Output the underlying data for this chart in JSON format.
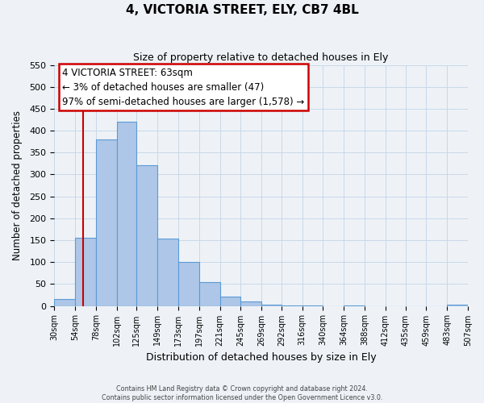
{
  "title": "4, VICTORIA STREET, ELY, CB7 4BL",
  "subtitle": "Size of property relative to detached houses in Ely",
  "xlabel": "Distribution of detached houses by size in Ely",
  "ylabel": "Number of detached properties",
  "bin_labels": [
    "30sqm",
    "54sqm",
    "78sqm",
    "102sqm",
    "125sqm",
    "149sqm",
    "173sqm",
    "197sqm",
    "221sqm",
    "245sqm",
    "269sqm",
    "292sqm",
    "316sqm",
    "340sqm",
    "364sqm",
    "388sqm",
    "412sqm",
    "435sqm",
    "459sqm",
    "483sqm",
    "507sqm"
  ],
  "bar_heights": [
    15,
    155,
    380,
    420,
    322,
    153,
    100,
    55,
    22,
    10,
    2,
    1,
    1,
    0,
    1,
    0,
    0,
    0,
    0,
    3,
    2
  ],
  "bar_color": "#aec6e8",
  "bar_edge_color": "#5b9bd5",
  "property_line_x": 63,
  "bin_edges": [
    30,
    54,
    78,
    102,
    125,
    149,
    173,
    197,
    221,
    245,
    269,
    292,
    316,
    340,
    364,
    388,
    412,
    435,
    459,
    483,
    507
  ],
  "ylim": [
    0,
    550
  ],
  "yticks": [
    0,
    50,
    100,
    150,
    200,
    250,
    300,
    350,
    400,
    450,
    500,
    550
  ],
  "annotation_title": "4 VICTORIA STREET: 63sqm",
  "annotation_line1": "← 3% of detached houses are smaller (47)",
  "annotation_line2": "97% of semi-detached houses are larger (1,578) →",
  "annotation_box_color": "#ffffff",
  "annotation_box_edge": "#cc0000",
  "footnote1": "Contains HM Land Registry data © Crown copyright and database right 2024.",
  "footnote2": "Contains public sector information licensed under the Open Government Licence v3.0.",
  "grid_color": "#c8d8e8",
  "background_color": "#eef2f7"
}
